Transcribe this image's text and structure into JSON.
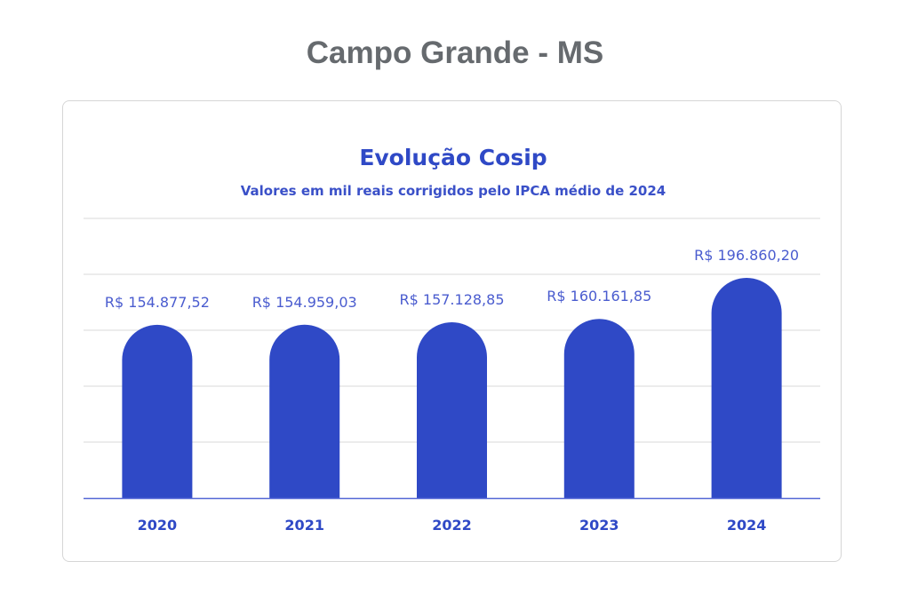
{
  "page_title": "Campo Grande - MS",
  "colors": {
    "bar": "#2f49c6",
    "text": "#2f49c6",
    "label": "#4a5ccf",
    "grid": "#ececec",
    "axis": "#5568d6"
  },
  "chart_data": {
    "type": "bar",
    "title": "Evolução Cosip",
    "subtitle": "Valores em mil reais corrigidos pelo IPCA médio de 2024",
    "categories": [
      "2020",
      "2021",
      "2022",
      "2023",
      "2024"
    ],
    "values": [
      154877.52,
      154959.03,
      157128.85,
      160161.85,
      196860.2
    ],
    "data_labels": [
      "R$ 154.877,52",
      "R$ 154.959,03",
      "R$ 157.128,85",
      "R$ 160.161,85",
      "R$ 196.860,20"
    ],
    "xlabel": "",
    "ylabel": "",
    "ylim": [
      0,
      250000
    ],
    "grid_step": 50000,
    "grid": true,
    "legend": "none"
  }
}
